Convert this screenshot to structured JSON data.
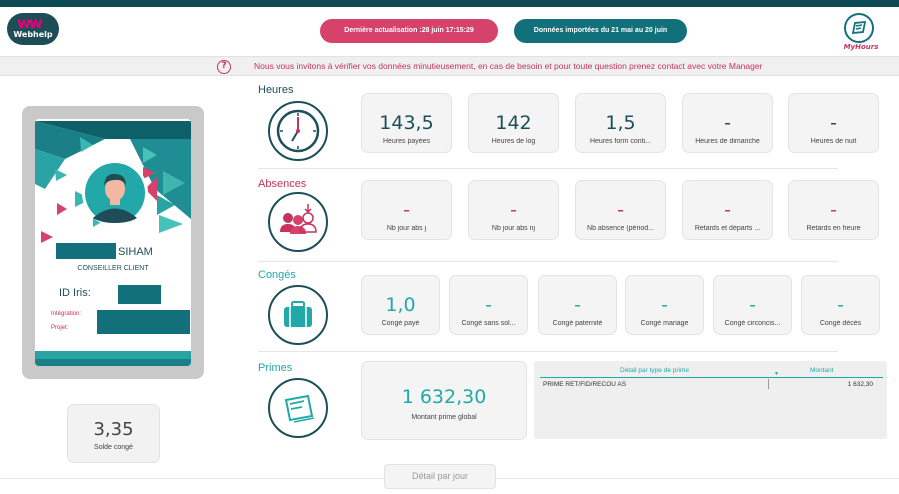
{
  "header": {
    "logo_text": "Webhelp",
    "last_update": "Dernière actualisation :28 juin 17:15:29",
    "import_range": "Données importées du 21 mai au 20 juin",
    "app_logo_label": "MyHours"
  },
  "notice": {
    "icon": "question-circle-icon",
    "text": "Nous vous invitons à vérifier vos données minutieusement, en cas de besoin et pour toute question prenez contact avec votre Manager"
  },
  "badge": {
    "name": "SIHAM",
    "role": "CONSEILLER CLIENT",
    "id_label": "ID Iris:",
    "integration_label": "Intégration:",
    "project_label": "Projet:"
  },
  "solde": {
    "value": "3,35",
    "label": "Solde congé"
  },
  "sections": {
    "heures": {
      "title": "Heures",
      "icon": "clock-icon",
      "cards": [
        {
          "value": "143,5",
          "label": "Heures payées"
        },
        {
          "value": "142",
          "label": "Heures de log"
        },
        {
          "value": "1,5",
          "label": "Heures form conti..."
        },
        {
          "value": "-",
          "label": "Heures de dimanche"
        },
        {
          "value": "-",
          "label": "Heures de nuit"
        }
      ]
    },
    "absences": {
      "title": "Absences",
      "icon": "people-absence-icon",
      "cards": [
        {
          "value": "-",
          "label": "Nb jour abs j"
        },
        {
          "value": "-",
          "label": "Nb jour abs nj"
        },
        {
          "value": "-",
          "label": "Nb absence (périod..."
        },
        {
          "value": "-",
          "label": "Retards et départs ..."
        },
        {
          "value": "-",
          "label": "Retards en heure"
        }
      ]
    },
    "conges": {
      "title": "Congés",
      "icon": "suitcase-icon",
      "cards": [
        {
          "value": "1,0",
          "label": "Congé payé"
        },
        {
          "value": "-",
          "label": "Congé sans sol..."
        },
        {
          "value": "-",
          "label": "Congé paternité"
        },
        {
          "value": "-",
          "label": "Congé mariage"
        },
        {
          "value": "-",
          "label": "Congé circoncis..."
        },
        {
          "value": "-",
          "label": "Congé décès"
        }
      ]
    },
    "primes": {
      "title": "Primes",
      "icon": "money-icon",
      "total_value": "1 632,30",
      "total_label": "Montant prime global",
      "table": {
        "col1": "Détail par type de prime",
        "col2": "Montant",
        "rows": [
          {
            "type": "PRIME RET/FID/RECOU AS",
            "amount": "1 632,30"
          }
        ]
      }
    }
  },
  "detail_button": "Détail par jour",
  "colors": {
    "teal_dark": "#0d4a53",
    "teal": "#23a8a9",
    "crimson": "#c7325e",
    "pink_pill": "#d6426a",
    "teal_pill": "#11707a"
  }
}
